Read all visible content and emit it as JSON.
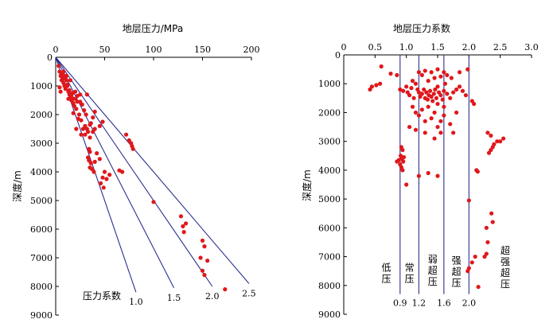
{
  "chart_data": [
    {
      "type": "scatter",
      "title": "地层压力/MPa",
      "ylabel": "深度/m",
      "xlim": [
        0,
        200
      ],
      "ylim": [
        0,
        9000
      ],
      "x_ticks": [
        "0",
        "50",
        "100",
        "150",
        "200"
      ],
      "y_ticks": [
        "0",
        "1000",
        "2000",
        "3000",
        "4000",
        "5000",
        "6000",
        "7000",
        "8000",
        "9000"
      ],
      "guide_title": "压力系数",
      "guide_lines": [
        {
          "label": "1.0",
          "coef": 1.0,
          "end_depth": 8200
        },
        {
          "label": "1.5",
          "coef": 1.5,
          "end_depth": 8050
        },
        {
          "label": "2.0",
          "coef": 2.0,
          "end_depth": 8000
        },
        {
          "label": "2.5",
          "coef": 2.5,
          "end_depth": 7900
        }
      ],
      "points": [
        [
          3,
          300
        ],
        [
          4,
          500
        ],
        [
          5,
          650
        ],
        [
          6,
          800
        ],
        [
          4,
          1050
        ],
        [
          5,
          1200
        ],
        [
          6,
          600
        ],
        [
          7,
          700
        ],
        [
          8,
          900
        ],
        [
          9,
          1000
        ],
        [
          10,
          1100
        ],
        [
          11,
          800
        ],
        [
          12,
          950
        ],
        [
          13,
          1200
        ],
        [
          14,
          1300
        ],
        [
          15,
          1400
        ],
        [
          16,
          1500
        ],
        [
          17,
          1250
        ],
        [
          18,
          1600
        ],
        [
          19,
          1700
        ],
        [
          20,
          1450
        ],
        [
          21,
          1800
        ],
        [
          22,
          1350
        ],
        [
          24,
          2000
        ],
        [
          25,
          1550
        ],
        [
          26,
          2200
        ],
        [
          28,
          2500
        ],
        [
          30,
          2400
        ],
        [
          31,
          2000
        ],
        [
          33,
          2600
        ],
        [
          35,
          2800
        ],
        [
          36,
          2300
        ],
        [
          38,
          2100
        ],
        [
          40,
          1900
        ],
        [
          32,
          1300
        ],
        [
          8,
          500
        ],
        [
          9,
          650
        ],
        [
          10,
          750
        ],
        [
          12,
          1000
        ],
        [
          14,
          1150
        ],
        [
          16,
          1350
        ],
        [
          18,
          1450
        ],
        [
          20,
          1200
        ],
        [
          22,
          1550
        ],
        [
          15,
          800
        ],
        [
          11,
          650
        ],
        [
          25,
          1300
        ],
        [
          27,
          1650
        ],
        [
          29,
          1850
        ],
        [
          13,
          1450
        ],
        [
          21,
          2500
        ],
        [
          23,
          2150
        ],
        [
          26,
          2700
        ],
        [
          18,
          1950
        ],
        [
          30,
          2700
        ],
        [
          32,
          2500
        ],
        [
          35,
          2350
        ],
        [
          38,
          2600
        ],
        [
          40,
          2500
        ],
        [
          45,
          2400
        ],
        [
          48,
          2250
        ],
        [
          34,
          3200
        ],
        [
          35,
          3300
        ],
        [
          33,
          3500
        ],
        [
          34,
          3600
        ],
        [
          36,
          3700
        ],
        [
          35,
          3850
        ],
        [
          37,
          3900
        ],
        [
          39,
          4000
        ],
        [
          40,
          3650
        ],
        [
          42,
          3350
        ],
        [
          45,
          3550
        ],
        [
          48,
          4200
        ],
        [
          50,
          4000
        ],
        [
          52,
          4250
        ],
        [
          46,
          4400
        ],
        [
          49,
          4550
        ],
        [
          55,
          4100
        ],
        [
          65,
          3950
        ],
        [
          68,
          4000
        ],
        [
          72,
          2700
        ],
        [
          75,
          2900
        ],
        [
          77,
          3000
        ],
        [
          78,
          3100
        ],
        [
          79,
          3200
        ],
        [
          100,
          5050
        ],
        [
          128,
          5550
        ],
        [
          130,
          5900
        ],
        [
          131,
          6100
        ],
        [
          133,
          5800
        ],
        [
          150,
          6400
        ],
        [
          152,
          6600
        ],
        [
          148,
          7000
        ],
        [
          155,
          7100
        ],
        [
          150,
          7450
        ],
        [
          152,
          7600
        ],
        [
          173,
          8100
        ]
      ]
    },
    {
      "type": "scatter",
      "title": "地层压力系数",
      "ylabel": "深度/m",
      "xlim": [
        0,
        3.0
      ],
      "ylim": [
        0,
        9000
      ],
      "x_ticks": [
        "0",
        "0.5",
        "1.0",
        "1.5",
        "2.0",
        "2.5",
        "3.0"
      ],
      "y_ticks": [
        "0",
        "1000",
        "2000",
        "3000",
        "4000",
        "5000",
        "6000",
        "7000",
        "8000",
        "9000"
      ],
      "bottom_ticks": [
        "0.9",
        "1.2",
        "1.6",
        "2.0"
      ],
      "boundaries": [
        0.9,
        1.2,
        1.6,
        2.0
      ],
      "zones": [
        {
          "label": "低压",
          "chars": [
            "低",
            "压"
          ]
        },
        {
          "label": "常压",
          "chars": [
            "常",
            "压"
          ]
        },
        {
          "label": "弱超压",
          "chars": [
            "弱",
            "超",
            "压"
          ]
        },
        {
          "label": "强超压",
          "chars": [
            "强",
            "超",
            "压"
          ]
        },
        {
          "label": "超强超压",
          "chars": [
            "超",
            "强",
            "超",
            "压"
          ]
        }
      ],
      "points": [
        [
          0.42,
          1200
        ],
        [
          0.45,
          1100
        ],
        [
          0.52,
          1050
        ],
        [
          0.58,
          1000
        ],
        [
          0.6,
          400
        ],
        [
          0.75,
          650
        ],
        [
          0.85,
          700
        ],
        [
          0.9,
          1200
        ],
        [
          0.95,
          1250
        ],
        [
          1.0,
          1100
        ],
        [
          1.02,
          1300
        ],
        [
          1.05,
          1400
        ],
        [
          1.08,
          1150
        ],
        [
          1.1,
          900
        ],
        [
          1.12,
          1500
        ],
        [
          1.15,
          1000
        ],
        [
          1.18,
          1200
        ],
        [
          1.2,
          1300
        ],
        [
          1.22,
          1450
        ],
        [
          1.25,
          1350
        ],
        [
          1.28,
          1200
        ],
        [
          1.3,
          1500
        ],
        [
          1.32,
          1300
        ],
        [
          1.34,
          1550
        ],
        [
          1.36,
          1400
        ],
        [
          1.38,
          1250
        ],
        [
          1.4,
          1450
        ],
        [
          1.42,
          1600
        ],
        [
          1.44,
          1350
        ],
        [
          1.46,
          1200
        ],
        [
          1.48,
          1500
        ],
        [
          1.5,
          1100
        ],
        [
          1.52,
          1300
        ],
        [
          1.55,
          1400
        ],
        [
          1.58,
          1550
        ],
        [
          1.6,
          1250
        ],
        [
          1.62,
          1000
        ],
        [
          1.65,
          1350
        ],
        [
          1.7,
          1500
        ],
        [
          1.75,
          1300
        ],
        [
          1.8,
          1200
        ],
        [
          1.85,
          1100
        ],
        [
          1.9,
          1250
        ],
        [
          1.35,
          900
        ],
        [
          1.45,
          800
        ],
        [
          1.25,
          700
        ],
        [
          1.55,
          750
        ],
        [
          1.6,
          600
        ],
        [
          1.65,
          700
        ],
        [
          1.3,
          550
        ],
        [
          1.4,
          600
        ],
        [
          1.5,
          500
        ],
        [
          1.2,
          600
        ],
        [
          1.72,
          800
        ],
        [
          1.85,
          600
        ],
        [
          1.95,
          1400
        ],
        [
          1.98,
          500
        ],
        [
          2.05,
          1600
        ],
        [
          2.08,
          1700
        ],
        [
          1.1,
          1800
        ],
        [
          1.15,
          2000
        ],
        [
          1.2,
          2100
        ],
        [
          1.25,
          1900
        ],
        [
          1.3,
          2300
        ],
        [
          1.35,
          1800
        ],
        [
          1.4,
          2200
        ],
        [
          1.45,
          2000
        ],
        [
          1.5,
          2500
        ],
        [
          1.55,
          2300
        ],
        [
          1.6,
          2100
        ],
        [
          1.7,
          2400
        ],
        [
          1.75,
          2700
        ],
        [
          1.8,
          2000
        ],
        [
          1.05,
          2500
        ],
        [
          1.15,
          2600
        ],
        [
          1.3,
          2700
        ],
        [
          1.45,
          2900
        ],
        [
          1.55,
          2700
        ],
        [
          1.5,
          1700
        ],
        [
          1.6,
          1800
        ],
        [
          0.92,
          3200
        ],
        [
          0.94,
          3300
        ],
        [
          0.91,
          3500
        ],
        [
          0.93,
          3600
        ],
        [
          0.95,
          3700
        ],
        [
          0.9,
          3800
        ],
        [
          0.92,
          3900
        ],
        [
          0.94,
          4000
        ],
        [
          0.96,
          3550
        ],
        [
          0.88,
          3650
        ],
        [
          0.85,
          3700
        ],
        [
          1.0,
          4500
        ],
        [
          1.2,
          4200
        ],
        [
          1.35,
          4100
        ],
        [
          1.5,
          4200
        ],
        [
          2.12,
          4000
        ],
        [
          2.14,
          4050
        ],
        [
          2.0,
          5050
        ],
        [
          2.3,
          2700
        ],
        [
          2.35,
          2800
        ],
        [
          2.45,
          3000
        ],
        [
          2.5,
          3000
        ],
        [
          2.55,
          2900
        ],
        [
          2.4,
          3100
        ],
        [
          2.38,
          3200
        ],
        [
          2.35,
          3300
        ],
        [
          2.32,
          3400
        ],
        [
          2.36,
          5500
        ],
        [
          2.38,
          5800
        ],
        [
          2.28,
          6000
        ],
        [
          2.3,
          6500
        ],
        [
          2.25,
          7000
        ],
        [
          2.28,
          6900
        ],
        [
          2.1,
          7000
        ],
        [
          2.05,
          7200
        ],
        [
          1.98,
          7500
        ],
        [
          2.0,
          7400
        ],
        [
          2.15,
          8050
        ]
      ]
    }
  ]
}
